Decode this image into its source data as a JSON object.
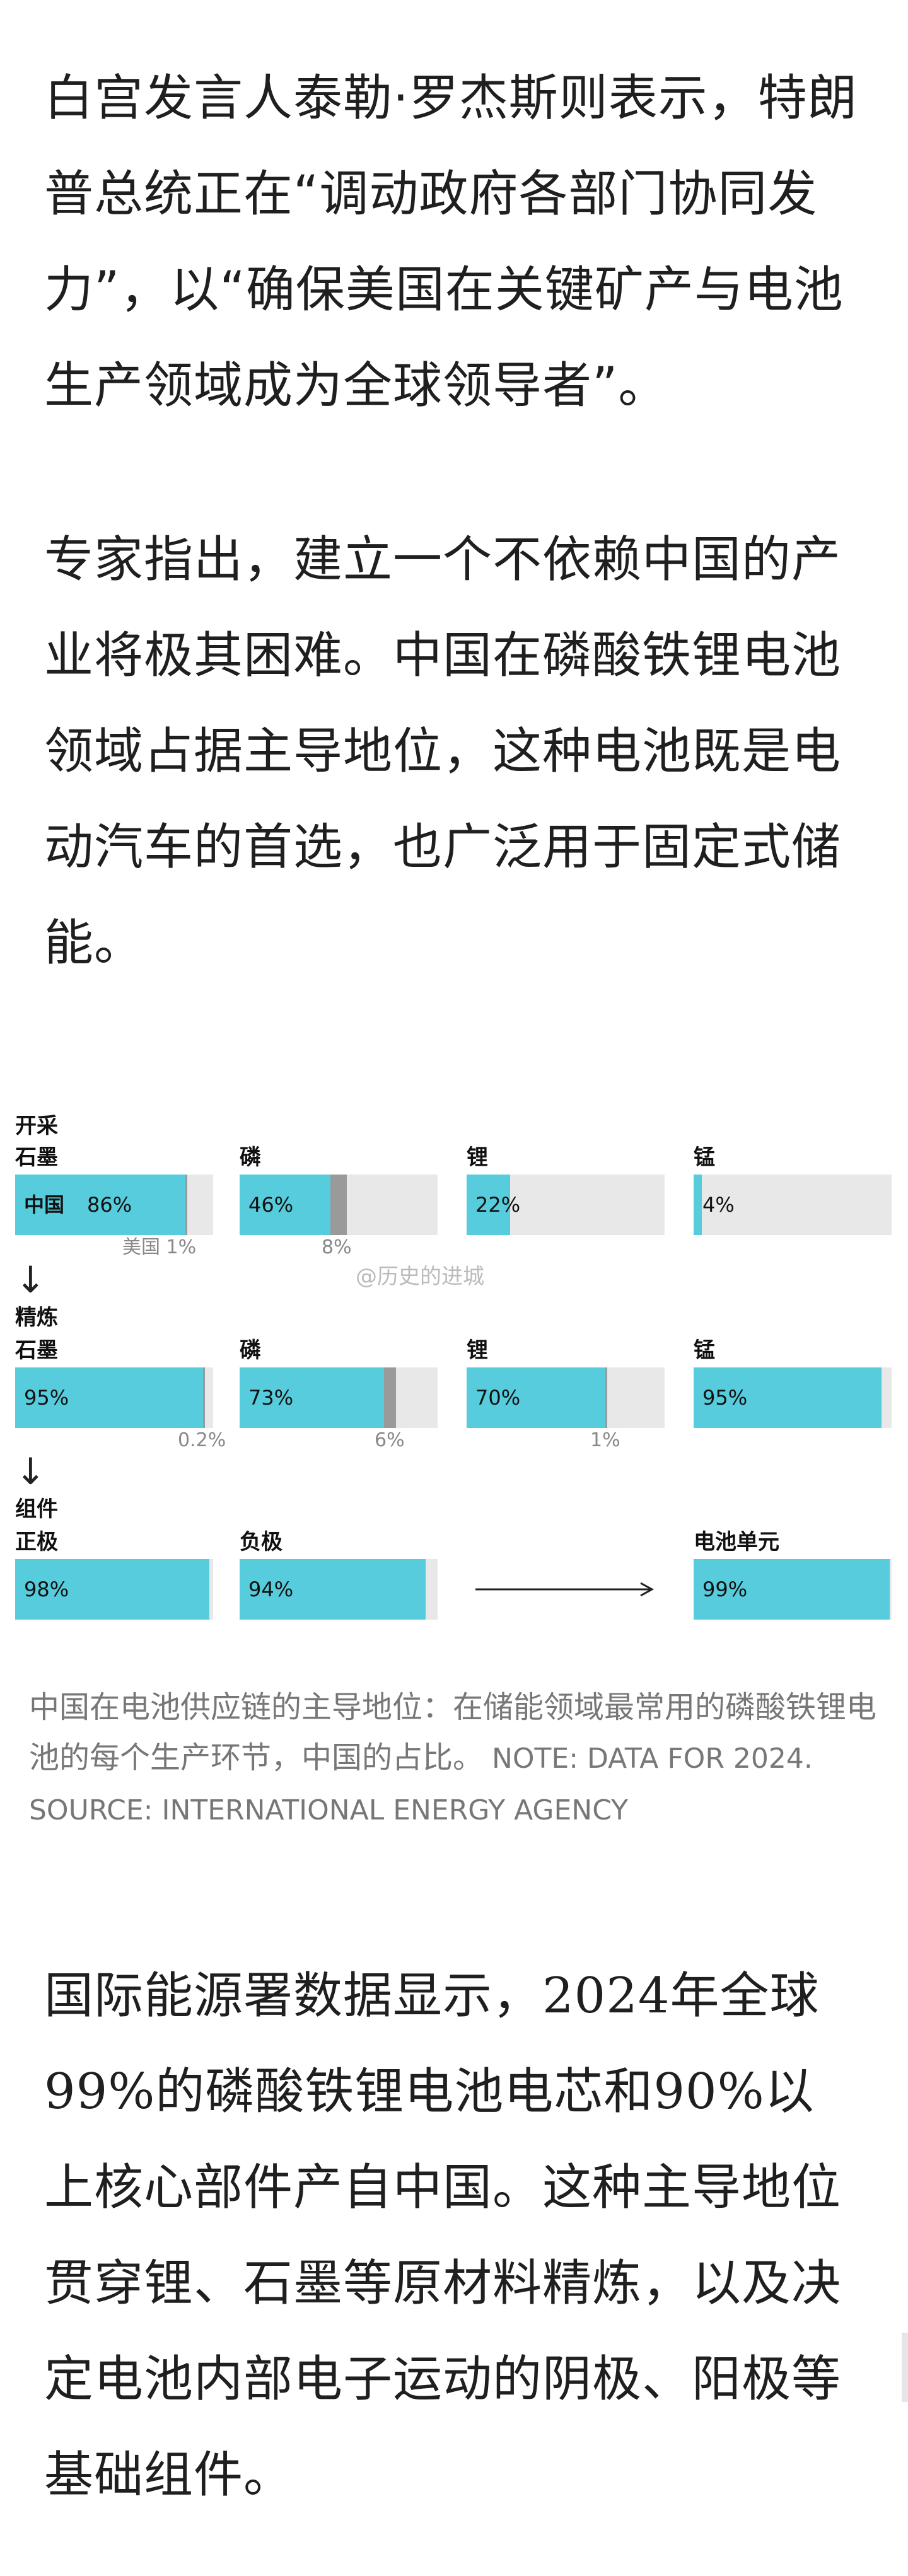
{
  "article": {
    "p1": "白宫发言人泰勒·罗杰斯则表示，特朗普总统正在“调动政府各部门协同发力”，以“确保美国在关键矿产与电池生产领域成为全球领导者”。",
    "p2": "专家指出，建立一个不依赖中国的产业将极其困难。中国在磷酸铁锂电池领域占据主导地位，这种电池既是电动汽车的首选，也广泛用于固定式储能。",
    "p3": "国际能源署数据显示，2024年全球99%的磷酸铁锂电池电芯和90%以上核心部件产自中国。这种主导地位贯穿锂、石墨等原材料精炼，以及决定电池内部电子运动的阴极、阳极等基础组件。"
  },
  "chart_data": {
    "type": "bar",
    "watermark": "@历史的进城",
    "colors": {
      "china": "#56ccdc",
      "us": "#9a9a9a",
      "rest": "#e8e8e8"
    },
    "stages": [
      {
        "title_line1": "开采",
        "items": [
          {
            "label": "石墨",
            "bar_label": "中国",
            "china": 86,
            "china_text": "86%",
            "us": 1,
            "us_text": "美国 1%"
          },
          {
            "label": "磷",
            "china": 46,
            "china_text": "46%",
            "us": 8,
            "us_text": "8%"
          },
          {
            "label": "锂",
            "china": 22,
            "china_text": "22%",
            "us": 0
          },
          {
            "label": "锰",
            "china": 4,
            "china_text": "4%",
            "us": 0
          }
        ]
      },
      {
        "title_line1": "精炼",
        "items": [
          {
            "label": "石墨",
            "china": 95,
            "china_text": "95%",
            "us": 0.2,
            "us_text": "0.2%"
          },
          {
            "label": "磷",
            "china": 73,
            "china_text": "73%",
            "us": 6,
            "us_text": "6%"
          },
          {
            "label": "锂",
            "china": 70,
            "china_text": "70%",
            "us": 1,
            "us_text": "1%"
          },
          {
            "label": "锰",
            "china": 95,
            "china_text": "95%",
            "us": 0
          }
        ]
      },
      {
        "title_line1": "组件",
        "items": [
          {
            "label": "正极",
            "china": 98,
            "china_text": "98%",
            "us": 0
          },
          {
            "label": "负极",
            "china": 94,
            "china_text": "94%",
            "us": 0
          },
          {
            "label": "电池单元",
            "china": 99,
            "china_text": "99%",
            "us": 0
          }
        ],
        "arrow": "⟶"
      }
    ],
    "down_arrow": "↓"
  },
  "caption": {
    "text": "中国在电池供应链的主导地位：在储能领域最常用的磷酸铁锂电池的每个生产环节，中国的占比。",
    "note": " NOTE: DATA FOR 2024. SOURCE: INTERNATIONAL ENERGY AGENCY"
  }
}
